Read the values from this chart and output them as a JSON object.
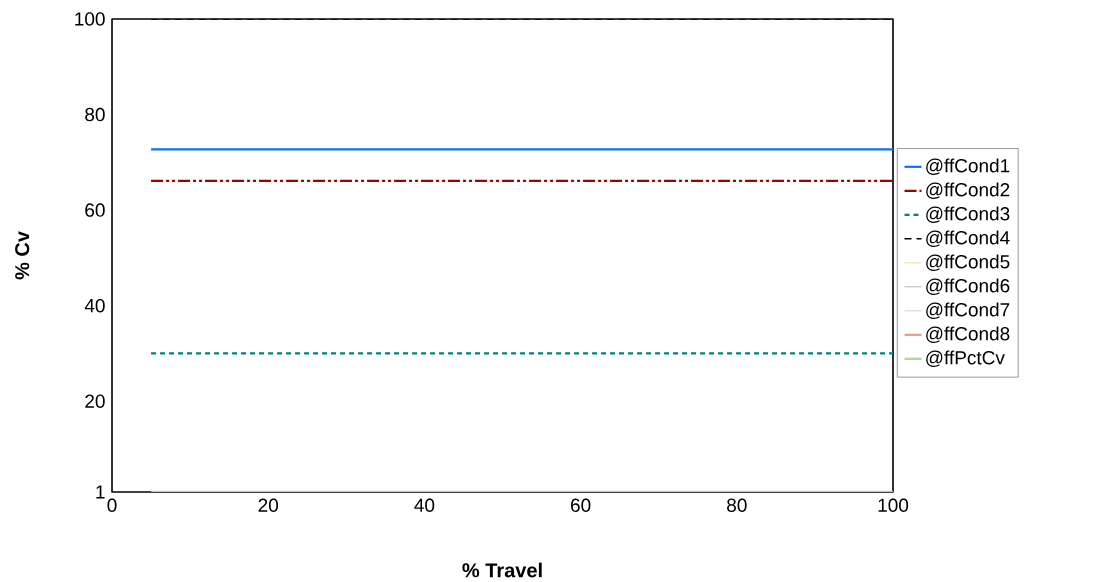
{
  "chart_data": {
    "type": "line",
    "xlabel": "% Travel",
    "ylabel": "% Cv",
    "x": [
      5,
      100
    ],
    "xlim": [
      0,
      100
    ],
    "xticks": [
      0,
      20,
      40,
      60,
      80,
      100
    ],
    "ylim": [
      1,
      100
    ],
    "yticks": [
      1,
      20,
      40,
      60,
      80,
      100
    ],
    "legend": "right",
    "grid": false,
    "marker": "none",
    "series": [
      {
        "name": "@ffCond1",
        "color": "#1070f0",
        "line_style": "solid",
        "values": [
          72.7,
          72.7
        ]
      },
      {
        "name": "@ffCond2",
        "color": "#a00000",
        "line_style": "dashdotdotted",
        "values": [
          66.1,
          66.1
        ]
      },
      {
        "name": "@ffCond3",
        "color": "#008080",
        "line_style": "dotted",
        "values": [
          30,
          30
        ]
      },
      {
        "name": "@ffCond4",
        "color": "#000000",
        "line_style": "dashed",
        "values": [
          100,
          100
        ]
      },
      {
        "name": "@ffCond5",
        "color": "#f0dc96",
        "line_style": "solid",
        "values": [
          null,
          null
        ]
      },
      {
        "name": "@ffCond6",
        "color": "#b4b4c8",
        "line_style": "solid",
        "values": [
          null,
          null
        ]
      },
      {
        "name": "@ffCond7",
        "color": "#c8d2dc",
        "line_style": "solid",
        "values": [
          null,
          null
        ]
      },
      {
        "name": "@ffCond8",
        "color": "#e8a096",
        "line_style": "solid",
        "values": [
          null,
          null
        ]
      },
      {
        "name": "@ffPctCv",
        "color": "#b4d4a8",
        "line_style": "solid",
        "values": [
          1,
          1
        ]
      }
    ]
  }
}
